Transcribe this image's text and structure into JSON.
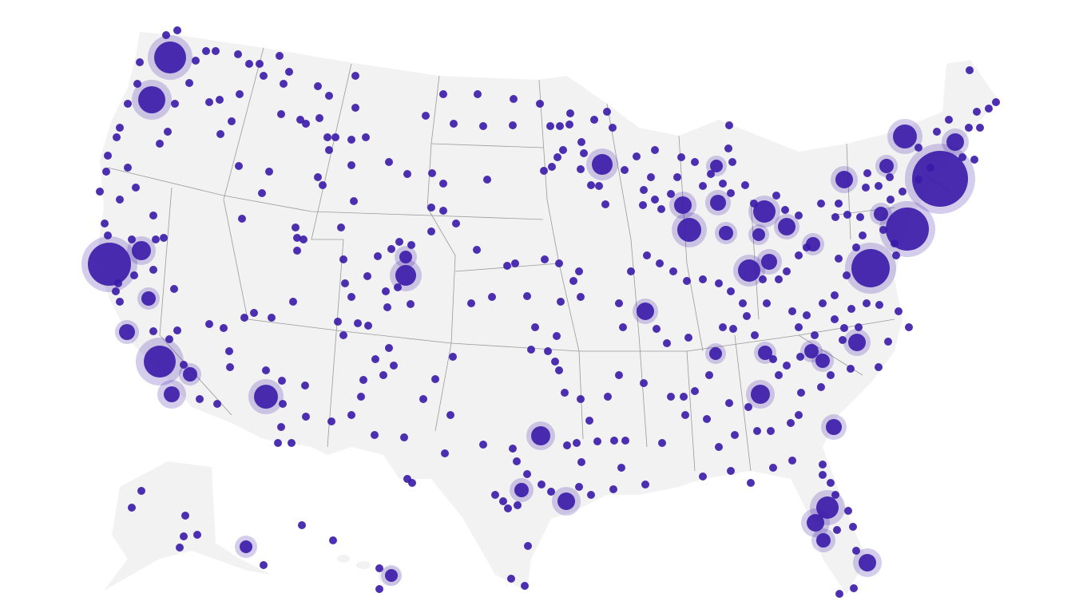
{
  "map": {
    "land_color": "#f2f2f2",
    "border_color": "#9a9a9a",
    "marker_color": "#3a1aa8",
    "halo_color": "#3a1aa8"
  }
}
